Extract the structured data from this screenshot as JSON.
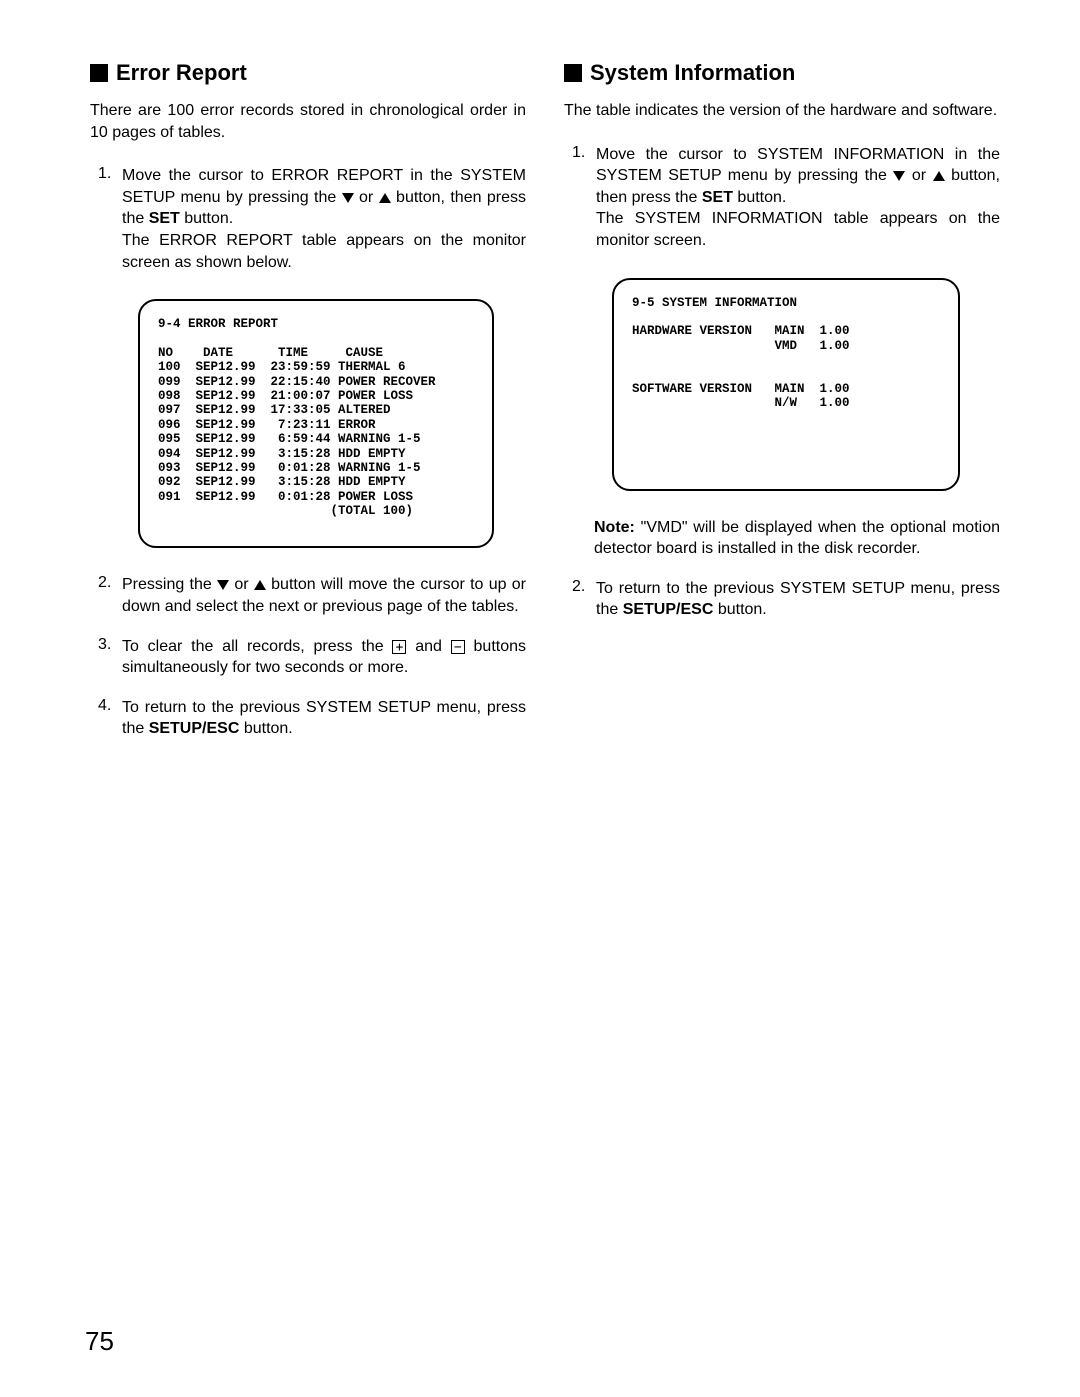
{
  "left": {
    "heading": "Error Report",
    "intro": "There are 100 error records stored in chronological order in 10 pages of tables.",
    "step1_a": "Move the cursor to ERROR REPORT in the SYSTEM SETUP menu by pressing the ",
    "step1_b": " or ",
    "step1_c": " button, then press the ",
    "step1_set": "SET",
    "step1_d": " button.",
    "step1_e": "The ERROR REPORT table appears on the monitor screen as shown below.",
    "error_title": "9-4 ERROR REPORT",
    "error_header": "NO    DATE      TIME     CAUSE",
    "error_rows": [
      "100  SEP12.99  23:59:59 THERMAL 6",
      "099  SEP12.99  22:15:40 POWER RECOVER",
      "098  SEP12.99  21:00:07 POWER LOSS",
      "097  SEP12.99  17:33:05 ALTERED",
      "096  SEP12.99   7:23:11 ERROR",
      "095  SEP12.99   6:59:44 WARNING 1-5",
      "094  SEP12.99   3:15:28 HDD EMPTY",
      "093  SEP12.99   0:01:28 WARNING 1-5",
      "092  SEP12.99   3:15:28 HDD EMPTY",
      "091  SEP12.99   0:01:28 POWER LOSS"
    ],
    "error_total": "                       (TOTAL 100)",
    "step2_a": "Pressing the ",
    "step2_b": " or ",
    "step2_c": " button will move the cursor to up or down and select the next or previous page of the tables.",
    "step3_a": "To clear the all records, press the ",
    "step3_b": " and ",
    "step3_c": " buttons simultaneously for two seconds or more.",
    "step4_a": "To return to the previous SYSTEM SETUP menu, press the ",
    "step4_setup": "SETUP/ESC",
    "step4_b": " button."
  },
  "right": {
    "heading": "System Information",
    "intro": "The table indicates the version of the hardware and software.",
    "step1_a": "Move the cursor to SYSTEM INFORMATION in the SYSTEM SETUP menu by pressing the ",
    "step1_b": " or ",
    "step1_c": " button, then press the ",
    "step1_set": "SET",
    "step1_d": " button.",
    "step1_e": "The SYSTEM INFORMATION table appears on the monitor screen.",
    "sys_title": "9-5 SYSTEM INFORMATION",
    "sys_hw": "HARDWARE VERSION   MAIN  1.00",
    "sys_hw2": "                   VMD   1.00",
    "sys_sw": "SOFTWARE VERSION   MAIN  1.00",
    "sys_sw2": "                   N/W   1.00",
    "note_label": "Note:",
    "note_body": " \"VMD\" will be displayed when the optional motion detector board is installed in the disk recorder.",
    "step2_a": "To return to the previous SYSTEM SETUP menu, press the ",
    "step2_setup": "SETUP/ESC",
    "step2_b": " button."
  },
  "page_number": "75",
  "icons": {
    "plus": "+",
    "minus": "−"
  }
}
